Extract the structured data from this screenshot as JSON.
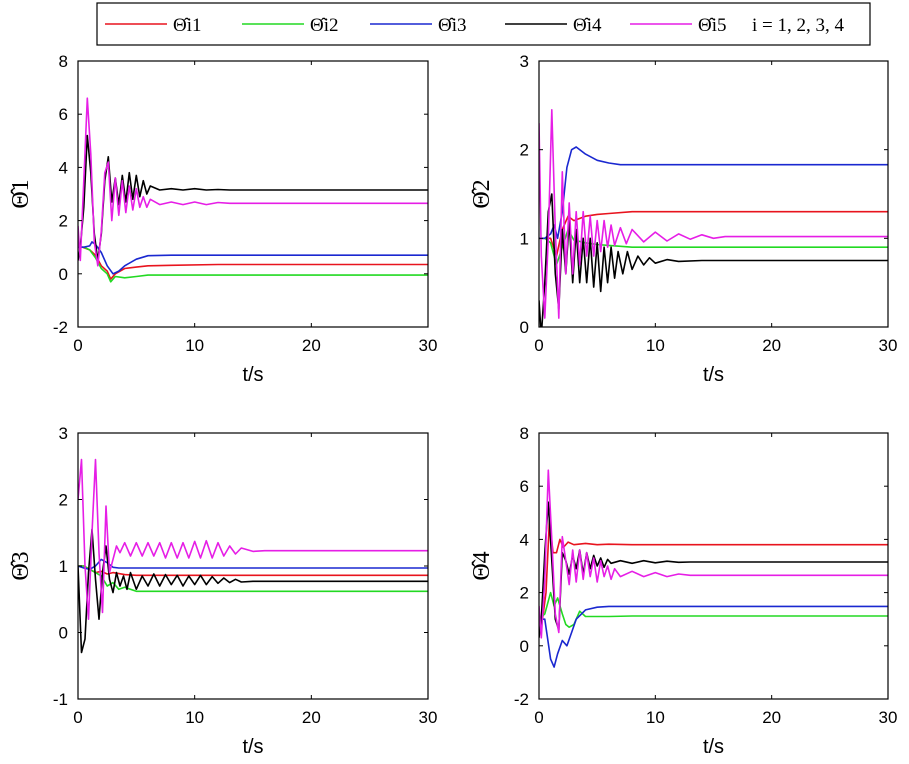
{
  "legend": {
    "entries": [
      {
        "label": "Θ̂i1",
        "color": "#e8141e"
      },
      {
        "label": "Θ̂i2",
        "color": "#22d922"
      },
      {
        "label": "Θ̂i3",
        "color": "#1a28d0"
      },
      {
        "label": "Θ̂i4",
        "color": "#000000"
      },
      {
        "label": "Θ̂i5",
        "color": "#e61ee6"
      }
    ],
    "suffix": "i = 1, 2, 3, 4"
  },
  "chart_data": [
    {
      "type": "line",
      "title": "",
      "xlabel": "t/s",
      "ylabel": "Θ̂1",
      "xlim": [
        0,
        30
      ],
      "ylim": [
        -2,
        8
      ],
      "xticks": [
        "0",
        "10",
        "20",
        "30"
      ],
      "yticks": [
        "-2",
        "0",
        "2",
        "4",
        "6",
        "8"
      ],
      "series": [
        {
          "name": "Θ̂i1",
          "color": "#e8141e",
          "x": [
            0,
            0.4,
            1,
            1.5,
            2,
            2.5,
            2.8,
            3.2,
            4,
            5,
            6,
            8,
            12,
            30
          ],
          "y": [
            1,
            1,
            0.9,
            0.7,
            0.3,
            0.1,
            -0.2,
            0,
            0.2,
            0.25,
            0.3,
            0.32,
            0.35,
            0.35
          ]
        },
        {
          "name": "Θ̂i2",
          "color": "#22d922",
          "x": [
            0,
            0.5,
            1,
            1.5,
            2,
            2.5,
            2.8,
            3.2,
            4,
            5,
            6,
            8,
            30
          ],
          "y": [
            1,
            1,
            0.9,
            0.6,
            0.2,
            0,
            -0.3,
            -0.1,
            -0.15,
            -0.1,
            -0.05,
            -0.05,
            -0.05
          ]
        },
        {
          "name": "Θ̂i3",
          "color": "#1a28d0",
          "x": [
            0,
            0.5,
            1,
            1.2,
            1.5,
            2,
            2.5,
            3,
            3.5,
            4,
            5,
            6,
            8,
            30
          ],
          "y": [
            1,
            1,
            1.05,
            1.2,
            1.1,
            0.8,
            0.3,
            0,
            0.1,
            0.3,
            0.55,
            0.68,
            0.7,
            0.7
          ]
        },
        {
          "name": "Θ̂i4",
          "color": "#000000",
          "x": [
            0,
            0.2,
            0.5,
            0.8,
            1.1,
            1.4,
            1.7,
            2.0,
            2.3,
            2.6,
            2.9,
            3.2,
            3.5,
            3.8,
            4.1,
            4.4,
            4.7,
            5.0,
            5.3,
            5.6,
            5.9,
            6.2,
            7,
            8,
            9,
            10,
            11,
            12,
            13,
            14,
            30
          ],
          "y": [
            0.5,
            1,
            2.5,
            5.2,
            3.8,
            1.5,
            0.5,
            1.5,
            3.5,
            4.4,
            2.7,
            3.6,
            2.6,
            3.7,
            2.7,
            3.8,
            2.8,
            3.7,
            2.9,
            3.5,
            3.0,
            3.3,
            3.15,
            3.2,
            3.15,
            3.2,
            3.15,
            3.17,
            3.15,
            3.15,
            3.15
          ]
        },
        {
          "name": "Θ̂i5",
          "color": "#e61ee6",
          "x": [
            0,
            0.2,
            0.5,
            0.8,
            1.1,
            1.4,
            1.7,
            2.0,
            2.3,
            2.6,
            2.9,
            3.2,
            3.5,
            3.8,
            4.1,
            4.4,
            4.7,
            5.0,
            5.3,
            5.6,
            5.9,
            6.2,
            7,
            8,
            9,
            10,
            11,
            12,
            13,
            14,
            30
          ],
          "y": [
            1.8,
            0.5,
            3.5,
            6.6,
            4.5,
            1.2,
            0.3,
            1.6,
            3.8,
            4.2,
            2.0,
            3.6,
            2.2,
            3.5,
            2.3,
            3.3,
            2.4,
            3.2,
            2.5,
            2.9,
            2.5,
            2.8,
            2.6,
            2.7,
            2.6,
            2.7,
            2.6,
            2.68,
            2.65,
            2.65,
            2.65
          ]
        }
      ]
    },
    {
      "type": "line",
      "title": "",
      "xlabel": "t/s",
      "ylabel": "Θ̂2",
      "xlim": [
        0,
        30
      ],
      "ylim": [
        0,
        3
      ],
      "xticks": [
        "0",
        "10",
        "20",
        "30"
      ],
      "yticks": [
        "0",
        "1",
        "2",
        "3"
      ],
      "series": [
        {
          "name": "Θ̂i1",
          "color": "#e8141e",
          "x": [
            0,
            0.5,
            1,
            1.5,
            2,
            2.5,
            3,
            4,
            5,
            6,
            8,
            10,
            30
          ],
          "y": [
            1,
            1,
            1.0,
            0.8,
            1.1,
            1.25,
            1.2,
            1.25,
            1.27,
            1.28,
            1.3,
            1.3,
            1.3
          ]
        },
        {
          "name": "Θ̂i2",
          "color": "#22d922",
          "x": [
            0,
            0.5,
            1,
            1.5,
            2,
            2.5,
            3,
            4,
            5,
            6,
            8,
            30
          ],
          "y": [
            1,
            1,
            0.95,
            0.7,
            0.9,
            1.1,
            0.98,
            0.95,
            0.93,
            0.92,
            0.9,
            0.9
          ]
        },
        {
          "name": "Θ̂i3",
          "color": "#1a28d0",
          "x": [
            0,
            0.5,
            1,
            1.3,
            1.6,
            2,
            2.4,
            2.8,
            3.2,
            4,
            5,
            6,
            7,
            8,
            10,
            30
          ],
          "y": [
            1,
            1,
            1.05,
            1.15,
            1.0,
            1.3,
            1.8,
            2.0,
            2.03,
            1.95,
            1.88,
            1.85,
            1.83,
            1.83,
            1.83,
            1.83
          ]
        },
        {
          "name": "Θ̂i4",
          "color": "#000000",
          "x": [
            0,
            0.2,
            0.5,
            0.8,
            1.1,
            1.4,
            1.7,
            2.0,
            2.3,
            2.6,
            2.9,
            3.2,
            3.5,
            3.8,
            4.1,
            4.4,
            4.7,
            5.0,
            5.3,
            5.6,
            5.9,
            6.2,
            6.5,
            6.8,
            7.2,
            7.6,
            8,
            8.5,
            9,
            9.5,
            10,
            11,
            12,
            14,
            30
          ],
          "y": [
            0.3,
            -0.1,
            0.5,
            1.3,
            1.5,
            0.6,
            0.2,
            1.1,
            0.6,
            1.2,
            0.5,
            1.1,
            0.5,
            1.0,
            0.5,
            1.0,
            0.45,
            0.95,
            0.4,
            0.9,
            0.5,
            0.9,
            0.55,
            0.85,
            0.6,
            0.85,
            0.65,
            0.8,
            0.7,
            0.78,
            0.72,
            0.76,
            0.74,
            0.75,
            0.75
          ]
        },
        {
          "name": "Θ̂i5",
          "color": "#e61ee6",
          "x": [
            0,
            0.2,
            0.5,
            0.8,
            1.1,
            1.4,
            1.7,
            2.0,
            2.3,
            2.6,
            2.9,
            3.2,
            3.5,
            3.8,
            4.1,
            4.4,
            4.7,
            5.0,
            5.3,
            5.6,
            5.9,
            6.2,
            6.5,
            7,
            7.5,
            8,
            9,
            10,
            11,
            12,
            13,
            14,
            15,
            16,
            30
          ],
          "y": [
            2.3,
            0.8,
            0.1,
            1.0,
            2.45,
            1.1,
            0.1,
            1.75,
            0.6,
            1.4,
            0.6,
            1.3,
            0.7,
            1.3,
            0.8,
            1.25,
            0.8,
            1.2,
            0.85,
            1.2,
            0.9,
            1.15,
            0.92,
            1.12,
            0.94,
            1.1,
            0.96,
            1.07,
            0.97,
            1.05,
            0.99,
            1.04,
            1.0,
            1.02,
            1.02
          ]
        }
      ]
    },
    {
      "type": "line",
      "title": "",
      "xlabel": "t/s",
      "ylabel": "Θ̂3",
      "xlim": [
        0,
        30
      ],
      "ylim": [
        -1,
        3
      ],
      "xticks": [
        "0",
        "10",
        "20",
        "30"
      ],
      "yticks": [
        "-1",
        "0",
        "1",
        "2",
        "3"
      ],
      "series": [
        {
          "name": "Θ̂i1",
          "color": "#e8141e",
          "x": [
            0,
            0.5,
            1,
            1.5,
            2,
            2.5,
            3,
            4,
            5,
            6,
            8,
            30
          ],
          "y": [
            1,
            1,
            0.95,
            0.9,
            0.92,
            0.88,
            0.9,
            0.87,
            0.86,
            0.86,
            0.86,
            0.86
          ]
        },
        {
          "name": "Θ̂i2",
          "color": "#22d922",
          "x": [
            0,
            0.5,
            1,
            1.5,
            2,
            2.5,
            3,
            3.5,
            4,
            5,
            6,
            8,
            30
          ],
          "y": [
            1,
            1,
            0.95,
            0.9,
            0.85,
            0.7,
            0.75,
            0.65,
            0.68,
            0.62,
            0.62,
            0.62,
            0.62
          ]
        },
        {
          "name": "Θ̂i3",
          "color": "#1a28d0",
          "x": [
            0,
            0.5,
            1,
            1.5,
            2,
            2.5,
            3,
            3.5,
            4,
            5,
            6,
            8,
            30
          ],
          "y": [
            1,
            0.97,
            0.95,
            1.0,
            1.1,
            1.05,
            0.98,
            0.97,
            0.97,
            0.97,
            0.97,
            0.97,
            0.97
          ]
        },
        {
          "name": "Θ̂i4",
          "color": "#000000",
          "x": [
            0,
            0.3,
            0.6,
            0.9,
            1.2,
            1.5,
            1.8,
            2.1,
            2.4,
            2.7,
            3.0,
            3.3,
            3.6,
            3.9,
            4.2,
            4.5,
            5.0,
            5.5,
            6.0,
            6.5,
            7.0,
            7.5,
            8.0,
            8.5,
            9.0,
            9.5,
            10,
            10.5,
            11,
            11.5,
            12,
            12.5,
            13,
            13.5,
            14,
            15,
            30
          ],
          "y": [
            1.0,
            -0.3,
            -0.1,
            0.9,
            1.55,
            0.8,
            0.2,
            0.9,
            1.3,
            0.8,
            0.6,
            0.9,
            0.7,
            0.85,
            0.65,
            0.9,
            0.65,
            0.85,
            0.7,
            0.88,
            0.7,
            0.87,
            0.72,
            0.86,
            0.7,
            0.85,
            0.72,
            0.86,
            0.72,
            0.84,
            0.74,
            0.82,
            0.75,
            0.8,
            0.76,
            0.77,
            0.77
          ]
        },
        {
          "name": "Θ̂i5",
          "color": "#e61ee6",
          "x": [
            0,
            0.3,
            0.6,
            0.9,
            1.2,
            1.5,
            1.8,
            2.1,
            2.4,
            2.7,
            3.0,
            3.3,
            3.6,
            4.0,
            4.5,
            5.0,
            5.5,
            6.0,
            6.5,
            7.0,
            7.5,
            8.0,
            8.5,
            9.0,
            9.5,
            10,
            10.5,
            11,
            11.5,
            12,
            12.5,
            13,
            13.5,
            14,
            15,
            16,
            30
          ],
          "y": [
            2.0,
            2.6,
            1.0,
            0.2,
            1.5,
            2.6,
            1.2,
            0.3,
            1.9,
            0.9,
            1.1,
            1.3,
            1.2,
            1.35,
            1.15,
            1.35,
            1.15,
            1.35,
            1.15,
            1.35,
            1.12,
            1.35,
            1.12,
            1.35,
            1.12,
            1.37,
            1.12,
            1.38,
            1.12,
            1.35,
            1.15,
            1.3,
            1.18,
            1.27,
            1.22,
            1.23,
            1.23
          ]
        }
      ]
    },
    {
      "type": "line",
      "title": "",
      "xlabel": "t/s",
      "ylabel": "Θ̂4",
      "xlim": [
        0,
        30
      ],
      "ylim": [
        -2,
        8
      ],
      "xticks": [
        "0",
        "10",
        "20",
        "30"
      ],
      "yticks": [
        "-2",
        "0",
        "2",
        "4",
        "6",
        "8"
      ],
      "series": [
        {
          "name": "Θ̂i1",
          "color": "#e8141e",
          "x": [
            0,
            0.3,
            0.6,
            0.9,
            1.2,
            1.5,
            1.8,
            2.1,
            2.5,
            3,
            4,
            5,
            6,
            8,
            30
          ],
          "y": [
            1,
            1,
            2,
            4.8,
            3.5,
            3.5,
            4.0,
            3.7,
            3.9,
            3.8,
            3.85,
            3.8,
            3.82,
            3.8,
            3.8
          ]
        },
        {
          "name": "Θ̂i2",
          "color": "#22d922",
          "x": [
            0,
            0.5,
            1,
            1.3,
            1.6,
            2,
            2.3,
            2.6,
            3,
            3.5,
            4,
            5,
            6,
            8,
            30
          ],
          "y": [
            1,
            1.2,
            2.0,
            1.5,
            1.8,
            1.2,
            0.8,
            0.7,
            0.8,
            1.3,
            1.1,
            1.1,
            1.1,
            1.12,
            1.12
          ]
        },
        {
          "name": "Θ̂i3",
          "color": "#1a28d0",
          "x": [
            0,
            0.5,
            1.0,
            1.3,
            1.6,
            2.0,
            2.4,
            2.8,
            3.2,
            4,
            5,
            6,
            8,
            30
          ],
          "y": [
            1,
            1.0,
            -0.5,
            -0.8,
            -0.3,
            0.2,
            0.0,
            0.5,
            1.0,
            1.35,
            1.45,
            1.48,
            1.48,
            1.48
          ]
        },
        {
          "name": "Θ̂i4",
          "color": "#000000",
          "x": [
            0,
            0.2,
            0.5,
            0.8,
            1.1,
            1.4,
            1.7,
            2.0,
            2.3,
            2.6,
            2.9,
            3.2,
            3.5,
            3.8,
            4.1,
            4.4,
            4.7,
            5.0,
            5.3,
            5.6,
            5.9,
            6.2,
            7,
            8,
            9,
            10,
            11,
            12,
            13,
            14,
            30
          ],
          "y": [
            0.3,
            1,
            3.5,
            5.4,
            3.2,
            1.0,
            0.6,
            3.5,
            3.2,
            2.7,
            3.4,
            2.9,
            3.6,
            2.7,
            3.5,
            2.9,
            3.4,
            3.0,
            3.3,
            2.95,
            3.25,
            3.1,
            3.2,
            3.1,
            3.2,
            3.12,
            3.18,
            3.14,
            3.15,
            3.15,
            3.15
          ]
        },
        {
          "name": "Θ̂i5",
          "color": "#e61ee6",
          "x": [
            0,
            0.2,
            0.5,
            0.8,
            1.1,
            1.4,
            1.7,
            2.0,
            2.3,
            2.6,
            2.9,
            3.2,
            3.5,
            3.8,
            4.1,
            4.4,
            4.7,
            5.0,
            5.3,
            5.6,
            5.9,
            6.2,
            6.5,
            7,
            8,
            9,
            10,
            11,
            12,
            13,
            14,
            30
          ],
          "y": [
            1.5,
            0.3,
            2.5,
            6.6,
            4.0,
            1.2,
            0.5,
            4.1,
            3.2,
            2.3,
            3.6,
            2.4,
            3.6,
            2.5,
            3.5,
            2.6,
            3.3,
            2.4,
            3.2,
            2.6,
            3.0,
            2.5,
            2.9,
            2.6,
            2.8,
            2.6,
            2.75,
            2.6,
            2.7,
            2.65,
            2.65,
            2.65
          ]
        }
      ]
    }
  ]
}
